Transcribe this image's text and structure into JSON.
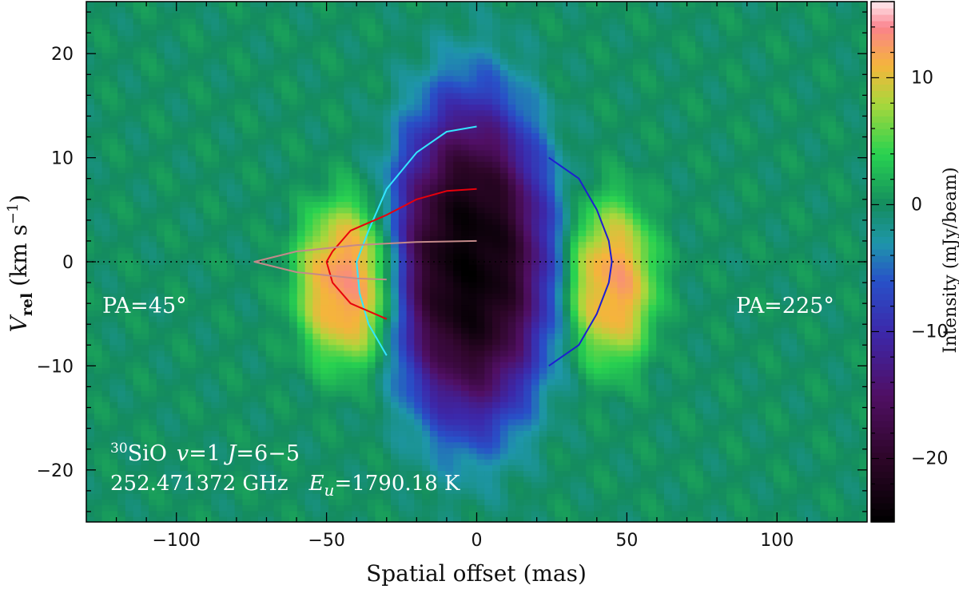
{
  "chart_data": {
    "type": "heatmap",
    "title": "",
    "xlabel": "Spatial offset (mas)",
    "ylabel_parts": {
      "main": "V",
      "sub": "rel",
      "units": "(km s",
      "sup": "−1",
      "close": ")"
    },
    "xlim": [
      -130,
      130
    ],
    "ylim": [
      -25,
      25
    ],
    "x_ticks": [
      -100,
      -50,
      0,
      50,
      100
    ],
    "x_tick_labels": [
      "−100",
      "−50",
      "0",
      "50",
      "100"
    ],
    "y_ticks": [
      -20,
      -10,
      0,
      10,
      20
    ],
    "y_tick_labels": [
      "−20",
      "−10",
      "0",
      "10",
      "20"
    ],
    "colorbar": {
      "label": "Intensity (mJy/beam)",
      "range": [
        -25,
        16
      ],
      "ticks": [
        -20,
        -10,
        0,
        10
      ],
      "tick_labels": [
        "−20",
        "−10",
        "0",
        "10"
      ]
    },
    "zero_line": {
      "y": 0,
      "style": "dotted"
    },
    "components": [
      {
        "name": "central absorption",
        "x_center": -2,
        "v_center": 0,
        "x_halfwidth": 23,
        "v_halfwidth": 14,
        "peak": -24
      },
      {
        "name": "west emission",
        "x_center": -43,
        "v_center": -2,
        "x_halfwidth": 15,
        "v_halfwidth": 7,
        "peak": 13
      },
      {
        "name": "east emission",
        "x_center": 45,
        "v_center": -2,
        "x_halfwidth": 13,
        "v_halfwidth": 7,
        "peak": 12
      }
    ],
    "model_curves": [
      {
        "color": "#33e6ff",
        "points": [
          [
            0,
            13
          ],
          [
            -10,
            12.5
          ],
          [
            -20,
            10.5
          ],
          [
            -30,
            7
          ],
          [
            -36,
            3
          ],
          [
            -40,
            0
          ],
          [
            -39,
            -3
          ],
          [
            -36,
            -6
          ],
          [
            -30,
            -9
          ]
        ]
      },
      {
        "color": "#e8000b",
        "points": [
          [
            0,
            7
          ],
          [
            -10,
            6.8
          ],
          [
            -20,
            6
          ],
          [
            -30,
            4.5
          ],
          [
            -42,
            3
          ],
          [
            -48,
            1
          ],
          [
            -50,
            0
          ],
          [
            -48,
            -2
          ],
          [
            -42,
            -4
          ],
          [
            -30,
            -5.5
          ]
        ]
      },
      {
        "color": "#c48a8a",
        "points": [
          [
            0,
            2
          ],
          [
            -20,
            1.9
          ],
          [
            -40,
            1.6
          ],
          [
            -60,
            1
          ],
          [
            -74,
            0
          ],
          [
            -60,
            -1
          ],
          [
            -40,
            -1.6
          ],
          [
            -30,
            -1.7
          ]
        ]
      },
      {
        "color": "#1e1ed2",
        "points": [
          [
            24,
            10
          ],
          [
            34,
            8
          ],
          [
            40,
            5
          ],
          [
            44,
            2
          ],
          [
            45,
            0
          ],
          [
            44,
            -2
          ],
          [
            40,
            -5
          ],
          [
            34,
            -8
          ],
          [
            24,
            -10
          ]
        ]
      }
    ],
    "annotations": {
      "left_pa": "PA=45°",
      "right_pa": "PA=225°",
      "line_id": "SiO",
      "isotope": "30",
      "transition_v": "v",
      "transition_v_eq": "=1  ",
      "transition_j": "J",
      "transition_j_eq": "=6−5",
      "frequency": "252.471372 GHz",
      "energy_sym": "E",
      "energy_sub": "u",
      "energy_val": "=1790.18 K"
    }
  }
}
